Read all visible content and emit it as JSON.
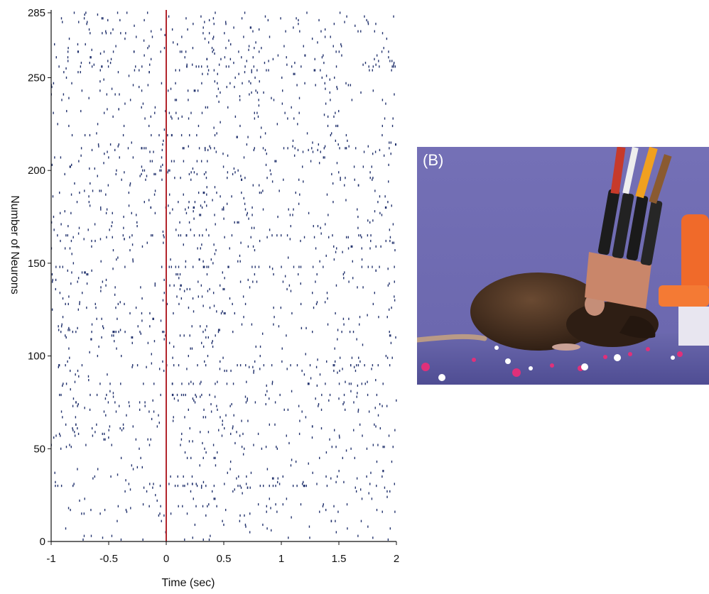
{
  "chart_data": {
    "type": "scatter",
    "subtype": "spike-raster",
    "title": "",
    "xlabel": "Time (sec)",
    "ylabel": "Number of Neurons",
    "xlim": [
      -1,
      2
    ],
    "ylim": [
      0,
      285
    ],
    "x_ticks": [
      "-1",
      "-0.5",
      "0",
      "0.5",
      "1",
      "1.5",
      "2"
    ],
    "y_ticks": [
      "0",
      "50",
      "100",
      "150",
      "200",
      "250",
      "285"
    ],
    "x_tick_values": [
      -1,
      -0.5,
      0,
      0.5,
      1,
      1.5,
      2
    ],
    "y_tick_values": [
      0,
      50,
      100,
      150,
      200,
      250,
      285
    ],
    "event_marker": {
      "x": 0,
      "color": "#b2262d"
    },
    "spike_color": "#23336e",
    "neuron_count": 285,
    "grid": false,
    "legend": "none"
  },
  "panel_b": {
    "label": "(B)",
    "image": "photo-of-rat-with-head-mounted-electrode-connectors"
  },
  "colors": {
    "background": "#ffffff",
    "axis": "#111111",
    "wall": "#7a75b8",
    "floor": "#5e5ca0"
  }
}
